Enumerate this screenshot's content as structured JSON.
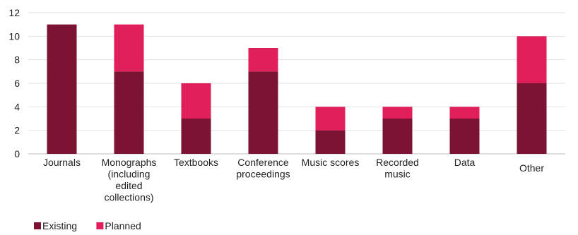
{
  "chart_data": {
    "type": "bar",
    "stacked": true,
    "categories": [
      [
        "Journals"
      ],
      [
        "Monographs",
        "(including",
        "edited",
        "collections)"
      ],
      [
        "Textbooks"
      ],
      [
        "Conference",
        "proceedings"
      ],
      [
        "Music scores"
      ],
      [
        "Recorded",
        "music"
      ],
      [
        "Data"
      ],
      [
        "Other"
      ]
    ],
    "series": [
      {
        "name": "Existing",
        "color": "#7d1333",
        "values": [
          11,
          7,
          3,
          7,
          2,
          3,
          3,
          6
        ]
      },
      {
        "name": "Planned",
        "color": "#e01e5a",
        "values": [
          0,
          4,
          3,
          2,
          2,
          1,
          1,
          4
        ]
      }
    ],
    "ylim": [
      0,
      12
    ],
    "yticks": [
      0,
      2,
      4,
      6,
      8,
      10,
      12
    ],
    "grid": true,
    "legend": "bottom-left"
  }
}
